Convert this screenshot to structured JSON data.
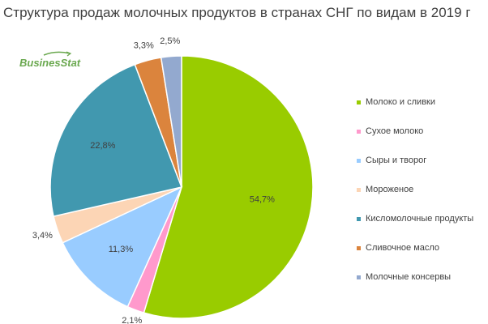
{
  "title": "Структура продаж молочных продуктов в странах СНГ по видам в 2019 г",
  "logo": {
    "text": "BusinesStat"
  },
  "chart_data": {
    "type": "pie",
    "title": "Структура продаж молочных продуктов в странах СНГ по видам в 2019 г",
    "legend_position": "right",
    "start_angle_deg": 0,
    "direction": "clockwise",
    "categories": [
      "Молоко и сливки",
      "Сухое молоко",
      "Сыры и творог",
      "Мороженое",
      "Кисломолочные продукты",
      "Сливочное масло",
      "Молочные консервы"
    ],
    "values": [
      54.7,
      2.1,
      11.3,
      3.4,
      22.8,
      3.3,
      2.5
    ],
    "value_labels": [
      "54,7%",
      "2,1%",
      "11,3%",
      "3,4%",
      "22,8%",
      "3,3%",
      "2,5%"
    ],
    "colors": [
      "#99cc00",
      "#ff99cc",
      "#99ccff",
      "#fcd5b5",
      "#4198af",
      "#db843d",
      "#93a9cf"
    ]
  }
}
